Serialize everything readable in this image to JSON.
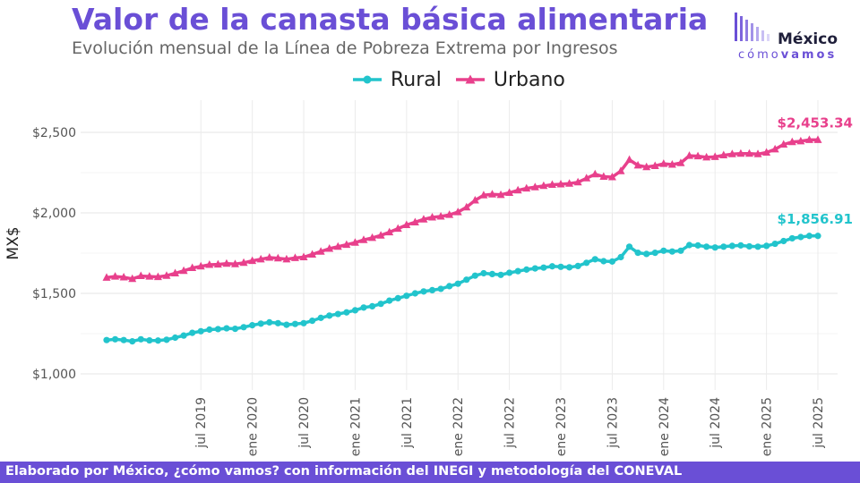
{
  "header": {
    "title": "Valor de la canasta básica alimentaria",
    "subtitle": "Evolución mensual de la Línea de Pobreza Extrema por Ingresos"
  },
  "logo": {
    "name": "México",
    "tagline_part1": "cómo",
    "tagline_part2": "vamos"
  },
  "footer": {
    "text": "Elaborado por México, ¿cómo vamos? con información del INEGI y metodología del CONEVAL"
  },
  "colors": {
    "rural": "#22c4cc",
    "urbano": "#e8408c",
    "accent": "#6a4fd6"
  },
  "chart_data": {
    "type": "line",
    "ylabel": "MX$",
    "xlabel": "",
    "ylim": [
      900,
      2700
    ],
    "y_ticks": [
      1000,
      1500,
      2000,
      2500
    ],
    "y_tick_labels": [
      "$1,000",
      "$1,500",
      "$2,000",
      "$2,500"
    ],
    "x_tick_labels": [
      "jul 2019",
      "ene 2020",
      "jul 2020",
      "ene 2021",
      "jul 2021",
      "ene 2022",
      "jul 2022",
      "ene 2023",
      "jul 2023",
      "ene 2024",
      "jul 2024",
      "ene 2025",
      "jul 2025"
    ],
    "x_tick_dates": [
      "2019-07",
      "2020-01",
      "2020-07",
      "2021-01",
      "2021-07",
      "2022-01",
      "2022-07",
      "2023-01",
      "2023-07",
      "2024-01",
      "2024-07",
      "2025-01",
      "2025-07"
    ],
    "x": [
      "2018-08",
      "2018-09",
      "2018-10",
      "2018-11",
      "2018-12",
      "2019-01",
      "2019-02",
      "2019-03",
      "2019-04",
      "2019-05",
      "2019-06",
      "2019-07",
      "2019-08",
      "2019-09",
      "2019-10",
      "2019-11",
      "2019-12",
      "2020-01",
      "2020-02",
      "2020-03",
      "2020-04",
      "2020-05",
      "2020-06",
      "2020-07",
      "2020-08",
      "2020-09",
      "2020-10",
      "2020-11",
      "2020-12",
      "2021-01",
      "2021-02",
      "2021-03",
      "2021-04",
      "2021-05",
      "2021-06",
      "2021-07",
      "2021-08",
      "2021-09",
      "2021-10",
      "2021-11",
      "2021-12",
      "2022-01",
      "2022-02",
      "2022-03",
      "2022-04",
      "2022-05",
      "2022-06",
      "2022-07",
      "2022-08",
      "2022-09",
      "2022-10",
      "2022-11",
      "2022-12",
      "2023-01",
      "2023-02",
      "2023-03",
      "2023-04",
      "2023-05",
      "2023-06",
      "2023-07",
      "2023-08",
      "2023-09",
      "2023-10",
      "2023-11",
      "2023-12",
      "2024-01",
      "2024-02",
      "2024-03",
      "2024-04",
      "2024-05",
      "2024-06",
      "2024-07",
      "2024-08",
      "2024-09",
      "2024-10",
      "2024-11",
      "2024-12",
      "2025-01",
      "2025-02",
      "2025-03",
      "2025-04",
      "2025-05",
      "2025-06",
      "2025-07"
    ],
    "series": [
      {
        "name": "Rural",
        "marker": "circle",
        "values": [
          1210,
          1215,
          1210,
          1202,
          1215,
          1208,
          1207,
          1212,
          1225,
          1238,
          1255,
          1265,
          1275,
          1278,
          1283,
          1280,
          1290,
          1302,
          1312,
          1320,
          1315,
          1305,
          1310,
          1315,
          1330,
          1348,
          1362,
          1372,
          1382,
          1395,
          1412,
          1420,
          1435,
          1455,
          1470,
          1485,
          1500,
          1512,
          1520,
          1528,
          1545,
          1560,
          1585,
          1610,
          1625,
          1620,
          1615,
          1628,
          1638,
          1648,
          1655,
          1660,
          1668,
          1665,
          1662,
          1670,
          1690,
          1712,
          1700,
          1698,
          1725,
          1790,
          1752,
          1745,
          1752,
          1765,
          1760,
          1765,
          1800,
          1798,
          1790,
          1785,
          1790,
          1795,
          1798,
          1792,
          1790,
          1795,
          1808,
          1825,
          1842,
          1850,
          1856.91,
          1856.91
        ]
      },
      {
        "name": "Urbano",
        "marker": "triangle",
        "values": [
          1598,
          1605,
          1600,
          1590,
          1608,
          1605,
          1602,
          1610,
          1625,
          1640,
          1658,
          1668,
          1678,
          1680,
          1685,
          1682,
          1690,
          1702,
          1712,
          1722,
          1718,
          1712,
          1720,
          1725,
          1742,
          1760,
          1778,
          1790,
          1802,
          1815,
          1832,
          1845,
          1860,
          1880,
          1902,
          1925,
          1942,
          1960,
          1972,
          1978,
          1988,
          2005,
          2035,
          2078,
          2110,
          2115,
          2112,
          2125,
          2140,
          2152,
          2160,
          2168,
          2175,
          2178,
          2182,
          2190,
          2215,
          2240,
          2225,
          2222,
          2260,
          2330,
          2295,
          2285,
          2292,
          2305,
          2300,
          2310,
          2355,
          2352,
          2345,
          2348,
          2358,
          2365,
          2368,
          2368,
          2365,
          2375,
          2395,
          2425,
          2440,
          2445,
          2453.34,
          2453.34
        ]
      }
    ],
    "annotations": [
      {
        "series": "Urbano",
        "text": "$2,453.34"
      },
      {
        "series": "Rural",
        "text": "$1,856.91"
      }
    ]
  }
}
